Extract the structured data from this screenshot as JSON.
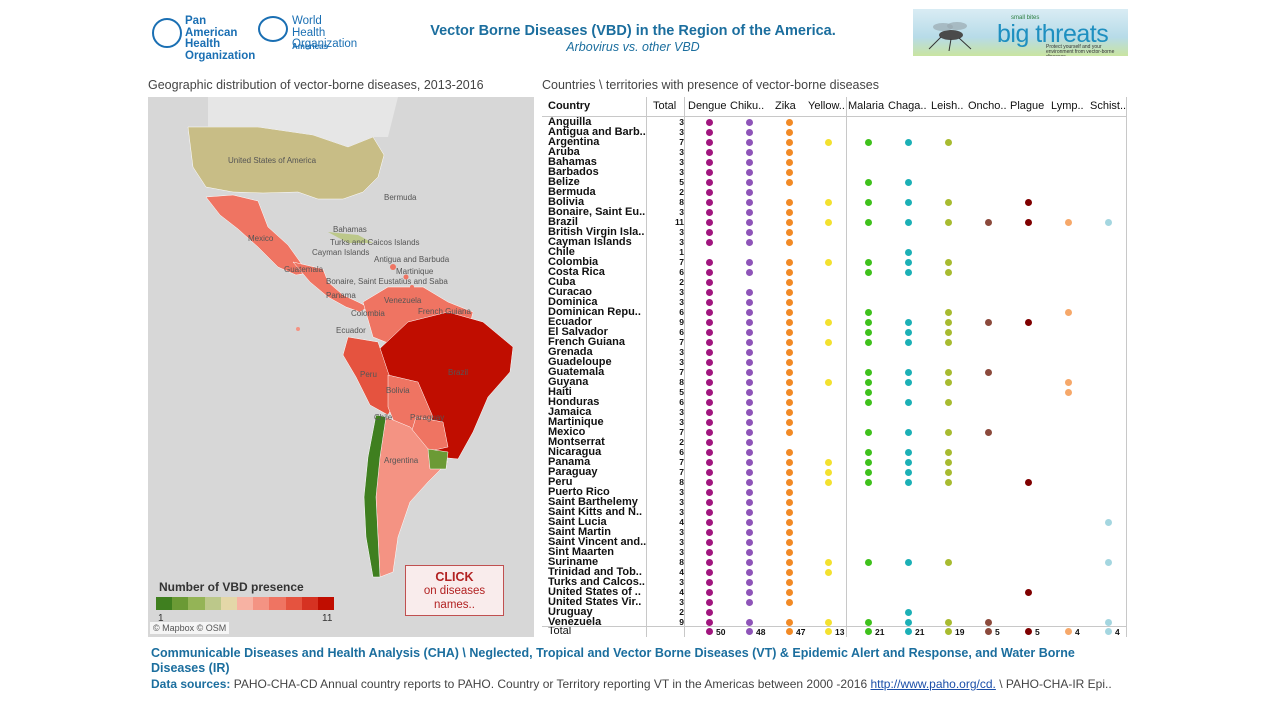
{
  "header": {
    "paho_logo_text": "Pan American\nHealth\nOrganization",
    "who_logo_text": "World Health\nOrganization",
    "who_logo_region": "Americas",
    "title": "Vector Borne Diseases (VBD) in the Region of the America.",
    "subtitle": "Arbovirus vs. other VBD",
    "banner": {
      "small_text": "small bites",
      "big_text": "big threats",
      "tagline": "Protect yourself and your environment from vector-borne diseases"
    }
  },
  "map_section": {
    "title": "Geographic distribution of vector-borne diseases, 2013-2016",
    "labels": [
      "United States of America",
      "Bermuda",
      "Mexico",
      "Bahamas",
      "Turks and Caicos Islands",
      "Cayman Islands",
      "Antigua and Barbuda",
      "Guatemala",
      "Martinique",
      "Bonaire, Saint Eustatius and Saba",
      "Panama",
      "Venezuela",
      "Colombia",
      "French Guiana",
      "Ecuador",
      "Brazil",
      "Peru",
      "Bolivia",
      "Chile",
      "Paraguay",
      "Argentina"
    ],
    "legend": {
      "title": "Number of VBD presence",
      "min": "1",
      "max": "11",
      "colors": [
        "#3f7f1f",
        "#6b9a35",
        "#94b456",
        "#bcc88a",
        "#e4d7a8",
        "#f7b2a3",
        "#f49383",
        "#ef7462",
        "#e5533f",
        "#d63222",
        "#c00d00"
      ]
    },
    "attribution": "© Mapbox © OSM",
    "click_box": {
      "line1": "CLICK",
      "line2": "on diseases",
      "line3": "names.."
    }
  },
  "table_section": {
    "title": "Countries \\ territories with presence of vector-borne diseases",
    "country_header": "Country",
    "total_header": "Total",
    "diseases": [
      {
        "name": "Dengue",
        "color": "#a0157e",
        "total": "50"
      },
      {
        "name": "Chiku..",
        "color": "#8e54b8",
        "total": "48"
      },
      {
        "name": "Zika",
        "color": "#f28a25",
        "total": "47"
      },
      {
        "name": "Yellow..",
        "color": "#f3e12f",
        "total": "13"
      },
      {
        "name": "Malaria",
        "color": "#3fc11c",
        "total": "21"
      },
      {
        "name": "Chaga..",
        "color": "#1cb0b6",
        "total": "21"
      },
      {
        "name": "Leish..",
        "color": "#a8bb30",
        "total": "19"
      },
      {
        "name": "Oncho..",
        "color": "#8b4a3c",
        "total": "5"
      },
      {
        "name": "Plague",
        "color": "#7f0000",
        "total": "5"
      },
      {
        "name": "Lymp..",
        "color": "#f6a86a",
        "total": "4"
      },
      {
        "name": "Schist..",
        "color": "#a4d6e0",
        "total": "4"
      }
    ],
    "rows": [
      {
        "country": "Anguilla",
        "total": "3",
        "p": [
          1,
          1,
          1,
          0,
          0,
          0,
          0,
          0,
          0,
          0,
          0
        ]
      },
      {
        "country": "Antigua and Barb..",
        "total": "3",
        "p": [
          1,
          1,
          1,
          0,
          0,
          0,
          0,
          0,
          0,
          0,
          0
        ]
      },
      {
        "country": "Argentina",
        "total": "7",
        "p": [
          1,
          1,
          1,
          1,
          1,
          1,
          1,
          0,
          0,
          0,
          0
        ]
      },
      {
        "country": "Aruba",
        "total": "3",
        "p": [
          1,
          1,
          1,
          0,
          0,
          0,
          0,
          0,
          0,
          0,
          0
        ]
      },
      {
        "country": "Bahamas",
        "total": "3",
        "p": [
          1,
          1,
          1,
          0,
          0,
          0,
          0,
          0,
          0,
          0,
          0
        ]
      },
      {
        "country": "Barbados",
        "total": "3",
        "p": [
          1,
          1,
          1,
          0,
          0,
          0,
          0,
          0,
          0,
          0,
          0
        ]
      },
      {
        "country": "Belize",
        "total": "5",
        "p": [
          1,
          1,
          1,
          0,
          1,
          1,
          0,
          0,
          0,
          0,
          0
        ]
      },
      {
        "country": "Bermuda",
        "total": "2",
        "p": [
          1,
          1,
          0,
          0,
          0,
          0,
          0,
          0,
          0,
          0,
          0
        ]
      },
      {
        "country": "Bolivia",
        "total": "8",
        "p": [
          1,
          1,
          1,
          1,
          1,
          1,
          1,
          0,
          1,
          0,
          0
        ]
      },
      {
        "country": "Bonaire, Saint Eu..",
        "total": "3",
        "p": [
          1,
          1,
          1,
          0,
          0,
          0,
          0,
          0,
          0,
          0,
          0
        ]
      },
      {
        "country": "Brazil",
        "total": "11",
        "p": [
          1,
          1,
          1,
          1,
          1,
          1,
          1,
          1,
          1,
          1,
          1
        ]
      },
      {
        "country": "British Virgin Isla..",
        "total": "3",
        "p": [
          1,
          1,
          1,
          0,
          0,
          0,
          0,
          0,
          0,
          0,
          0
        ]
      },
      {
        "country": "Cayman Islands",
        "total": "3",
        "p": [
          1,
          1,
          1,
          0,
          0,
          0,
          0,
          0,
          0,
          0,
          0
        ]
      },
      {
        "country": "Chile",
        "total": "1",
        "p": [
          0,
          0,
          0,
          0,
          0,
          1,
          0,
          0,
          0,
          0,
          0
        ]
      },
      {
        "country": "Colombia",
        "total": "7",
        "p": [
          1,
          1,
          1,
          1,
          1,
          1,
          1,
          0,
          0,
          0,
          0
        ]
      },
      {
        "country": "Costa Rica",
        "total": "6",
        "p": [
          1,
          1,
          1,
          0,
          1,
          1,
          1,
          0,
          0,
          0,
          0
        ]
      },
      {
        "country": "Cuba",
        "total": "2",
        "p": [
          1,
          0,
          1,
          0,
          0,
          0,
          0,
          0,
          0,
          0,
          0
        ]
      },
      {
        "country": "Curacao",
        "total": "3",
        "p": [
          1,
          1,
          1,
          0,
          0,
          0,
          0,
          0,
          0,
          0,
          0
        ]
      },
      {
        "country": "Dominica",
        "total": "3",
        "p": [
          1,
          1,
          1,
          0,
          0,
          0,
          0,
          0,
          0,
          0,
          0
        ]
      },
      {
        "country": "Dominican Repu..",
        "total": "6",
        "p": [
          1,
          1,
          1,
          0,
          1,
          0,
          1,
          0,
          0,
          1,
          0
        ]
      },
      {
        "country": "Ecuador",
        "total": "9",
        "p": [
          1,
          1,
          1,
          1,
          1,
          1,
          1,
          1,
          1,
          0,
          0
        ]
      },
      {
        "country": "El Salvador",
        "total": "6",
        "p": [
          1,
          1,
          1,
          0,
          1,
          1,
          1,
          0,
          0,
          0,
          0
        ]
      },
      {
        "country": "French Guiana",
        "total": "7",
        "p": [
          1,
          1,
          1,
          1,
          1,
          1,
          1,
          0,
          0,
          0,
          0
        ]
      },
      {
        "country": "Grenada",
        "total": "3",
        "p": [
          1,
          1,
          1,
          0,
          0,
          0,
          0,
          0,
          0,
          0,
          0
        ]
      },
      {
        "country": "Guadeloupe",
        "total": "3",
        "p": [
          1,
          1,
          1,
          0,
          0,
          0,
          0,
          0,
          0,
          0,
          0
        ]
      },
      {
        "country": "Guatemala",
        "total": "7",
        "p": [
          1,
          1,
          1,
          0,
          1,
          1,
          1,
          1,
          0,
          0,
          0
        ]
      },
      {
        "country": "Guyana",
        "total": "8",
        "p": [
          1,
          1,
          1,
          1,
          1,
          1,
          1,
          0,
          0,
          1,
          0
        ]
      },
      {
        "country": "Haiti",
        "total": "5",
        "p": [
          1,
          1,
          1,
          0,
          1,
          0,
          0,
          0,
          0,
          1,
          0
        ]
      },
      {
        "country": "Honduras",
        "total": "6",
        "p": [
          1,
          1,
          1,
          0,
          1,
          1,
          1,
          0,
          0,
          0,
          0
        ]
      },
      {
        "country": "Jamaica",
        "total": "3",
        "p": [
          1,
          1,
          1,
          0,
          0,
          0,
          0,
          0,
          0,
          0,
          0
        ]
      },
      {
        "country": "Martinique",
        "total": "3",
        "p": [
          1,
          1,
          1,
          0,
          0,
          0,
          0,
          0,
          0,
          0,
          0
        ]
      },
      {
        "country": "Mexico",
        "total": "7",
        "p": [
          1,
          1,
          1,
          0,
          1,
          1,
          1,
          1,
          0,
          0,
          0
        ]
      },
      {
        "country": "Montserrat",
        "total": "2",
        "p": [
          1,
          1,
          0,
          0,
          0,
          0,
          0,
          0,
          0,
          0,
          0
        ]
      },
      {
        "country": "Nicaragua",
        "total": "6",
        "p": [
          1,
          1,
          1,
          0,
          1,
          1,
          1,
          0,
          0,
          0,
          0
        ]
      },
      {
        "country": "Panama",
        "total": "7",
        "p": [
          1,
          1,
          1,
          1,
          1,
          1,
          1,
          0,
          0,
          0,
          0
        ]
      },
      {
        "country": "Paraguay",
        "total": "7",
        "p": [
          1,
          1,
          1,
          1,
          1,
          1,
          1,
          0,
          0,
          0,
          0
        ]
      },
      {
        "country": "Peru",
        "total": "8",
        "p": [
          1,
          1,
          1,
          1,
          1,
          1,
          1,
          0,
          1,
          0,
          0
        ]
      },
      {
        "country": "Puerto Rico",
        "total": "3",
        "p": [
          1,
          1,
          1,
          0,
          0,
          0,
          0,
          0,
          0,
          0,
          0
        ]
      },
      {
        "country": "Saint Barthelemy",
        "total": "3",
        "p": [
          1,
          1,
          1,
          0,
          0,
          0,
          0,
          0,
          0,
          0,
          0
        ]
      },
      {
        "country": "Saint Kitts and N..",
        "total": "3",
        "p": [
          1,
          1,
          1,
          0,
          0,
          0,
          0,
          0,
          0,
          0,
          0
        ]
      },
      {
        "country": "Saint Lucia",
        "total": "4",
        "p": [
          1,
          1,
          1,
          0,
          0,
          0,
          0,
          0,
          0,
          0,
          1
        ]
      },
      {
        "country": "Saint Martin",
        "total": "3",
        "p": [
          1,
          1,
          1,
          0,
          0,
          0,
          0,
          0,
          0,
          0,
          0
        ]
      },
      {
        "country": "Saint Vincent and..",
        "total": "3",
        "p": [
          1,
          1,
          1,
          0,
          0,
          0,
          0,
          0,
          0,
          0,
          0
        ]
      },
      {
        "country": "Sint Maarten",
        "total": "3",
        "p": [
          1,
          1,
          1,
          0,
          0,
          0,
          0,
          0,
          0,
          0,
          0
        ]
      },
      {
        "country": "Suriname",
        "total": "8",
        "p": [
          1,
          1,
          1,
          1,
          1,
          1,
          1,
          0,
          0,
          0,
          1
        ]
      },
      {
        "country": "Trinidad and Tob..",
        "total": "4",
        "p": [
          1,
          1,
          1,
          1,
          0,
          0,
          0,
          0,
          0,
          0,
          0
        ]
      },
      {
        "country": "Turks and Calcos..",
        "total": "3",
        "p": [
          1,
          1,
          1,
          0,
          0,
          0,
          0,
          0,
          0,
          0,
          0
        ]
      },
      {
        "country": "United States of ..",
        "total": "4",
        "p": [
          1,
          1,
          1,
          0,
          0,
          0,
          0,
          0,
          1,
          0,
          0
        ]
      },
      {
        "country": "United States Vir..",
        "total": "3",
        "p": [
          1,
          1,
          1,
          0,
          0,
          0,
          0,
          0,
          0,
          0,
          0
        ]
      },
      {
        "country": "Uruguay",
        "total": "2",
        "p": [
          1,
          0,
          0,
          0,
          0,
          1,
          0,
          0,
          0,
          0,
          0
        ]
      },
      {
        "country": "Venezuela",
        "total": "9",
        "p": [
          1,
          1,
          1,
          1,
          1,
          1,
          1,
          1,
          0,
          0,
          1
        ]
      }
    ],
    "footer_label": "Total"
  },
  "footer": {
    "title": "Communicable Diseases and Health Analysis (CHA) \\ Neglected, Tropical and Vector Borne Diseases (VT) & Epidemic Alert and Response, and Water Borne Diseases (IR)",
    "sources_label": "Data sources:",
    "sources_text": "PAHO-CHA-CD Annual country reports to PAHO. Country or Territory reporting VT in the Americas between 2000 -2016",
    "link_text": "http://www.paho.org/cd.",
    "sources_tail": "\\ PAHO-CHA-IR  Epi.."
  }
}
